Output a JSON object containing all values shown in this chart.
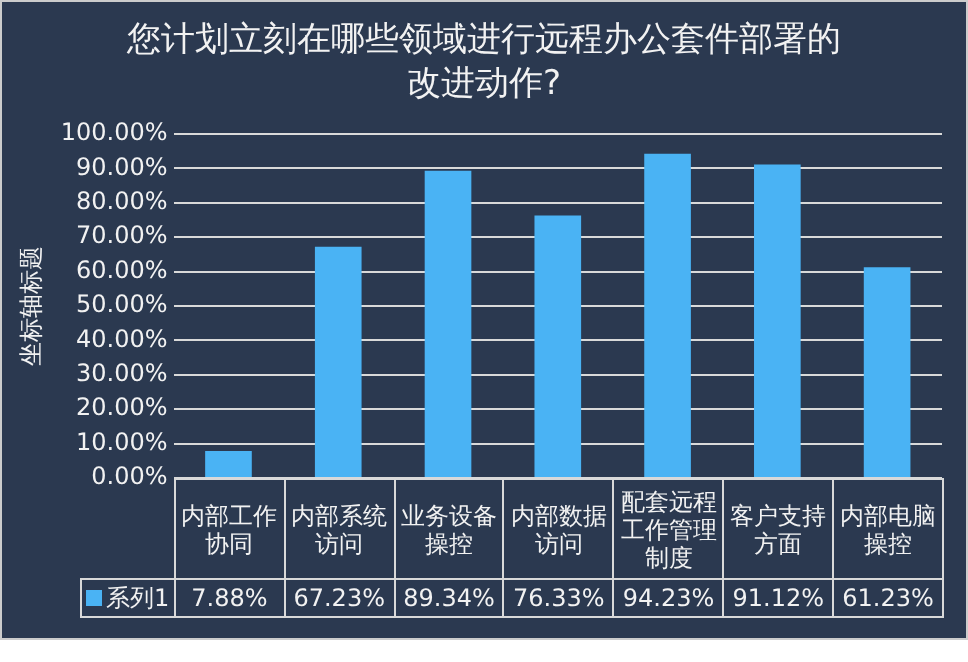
{
  "chart_data": {
    "type": "bar",
    "title": "您计划立刻在哪些领域进行远程办公套件部署的改进动作?",
    "ylabel": "坐标轴标题",
    "categories": [
      "内部工作协同",
      "内部系统访问",
      "业务设备操控",
      "内部数据访问",
      "配套远程工作管理制度",
      "客户支持方面",
      "内部电脑操控"
    ],
    "series": [
      {
        "name": "系列1",
        "color": "#4ab3f4",
        "values": [
          7.88,
          67.23,
          89.34,
          76.33,
          94.23,
          91.12,
          61.23
        ],
        "value_labels": [
          "7.88%",
          "67.23%",
          "89.34%",
          "76.33%",
          "94.23%",
          "91.12%",
          "61.23%"
        ]
      }
    ],
    "ylim": [
      0,
      100
    ],
    "yticks": [
      {
        "value": 0,
        "label": "0.00%"
      },
      {
        "value": 10,
        "label": "10.00%"
      },
      {
        "value": 20,
        "label": "20.00%"
      },
      {
        "value": 30,
        "label": "30.00%"
      },
      {
        "value": 40,
        "label": "40.00%"
      },
      {
        "value": 50,
        "label": "50.00%"
      },
      {
        "value": 60,
        "label": "60.00%"
      },
      {
        "value": 70,
        "label": "70.00%"
      },
      {
        "value": 80,
        "label": "80.00%"
      },
      {
        "value": 90,
        "label": "90.00%"
      },
      {
        "value": 100,
        "label": "100.00%"
      }
    ],
    "grid": "y"
  }
}
